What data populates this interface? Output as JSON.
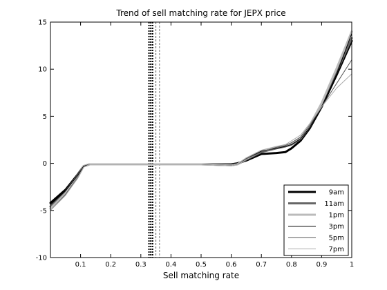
{
  "chart_data": {
    "type": "line",
    "title": "Trend of sell matching rate for JEPX price",
    "xlabel": "Sell matching rate",
    "ylabel": "",
    "xlim": [
      0,
      1
    ],
    "ylim": [
      -10,
      15
    ],
    "x_ticks": [
      0.1,
      0.2,
      0.3,
      0.4,
      0.5,
      0.6,
      0.7,
      0.8,
      0.9,
      1
    ],
    "x_tick_labels": [
      "0.1",
      "0.2",
      "0.3",
      "0.4",
      "0.5",
      "0.6",
      "0.7",
      "0.8",
      "0.9",
      "1"
    ],
    "y_ticks": [
      -10,
      -5,
      0,
      5,
      10,
      15
    ],
    "y_tick_labels": [
      "-10",
      "-5",
      "0",
      "5",
      "10",
      "15"
    ],
    "grid": false,
    "legend_placement": "bottom-right",
    "vertical_lines": [
      {
        "x": 0.327,
        "color": "#000000",
        "width": 2,
        "dash": "2,2"
      },
      {
        "x": 0.333,
        "color": "#000000",
        "width": 2,
        "dash": "2,2"
      },
      {
        "x": 0.339,
        "color": "#000000",
        "width": 2,
        "dash": "2,2"
      },
      {
        "x": 0.35,
        "color": "#555555",
        "width": 1,
        "dash": "3,2"
      },
      {
        "x": 0.362,
        "color": "#777777",
        "width": 1,
        "dash": "3,2"
      }
    ],
    "series": [
      {
        "name": "9am",
        "color": "#000000",
        "width": 3,
        "x": [
          0.0,
          0.05,
          0.09,
          0.11,
          0.13,
          0.3,
          0.5,
          0.6,
          0.62,
          0.65,
          0.7,
          0.75,
          0.78,
          0.8,
          0.83,
          0.86,
          0.9,
          0.95,
          1.0
        ],
        "y": [
          -4.2,
          -2.8,
          -1.2,
          -0.3,
          -0.1,
          -0.1,
          -0.1,
          -0.1,
          0.0,
          0.3,
          1.0,
          1.1,
          1.2,
          1.6,
          2.4,
          3.7,
          6.0,
          9.4,
          13.0
        ]
      },
      {
        "name": "11am",
        "color": "#666666",
        "width": 3,
        "x": [
          0.0,
          0.05,
          0.09,
          0.11,
          0.13,
          0.3,
          0.5,
          0.6,
          0.62,
          0.65,
          0.7,
          0.75,
          0.78,
          0.8,
          0.83,
          0.86,
          0.9,
          0.95,
          1.0
        ],
        "y": [
          -4.6,
          -3.0,
          -1.3,
          -0.3,
          -0.1,
          -0.1,
          -0.1,
          -0.2,
          -0.1,
          0.4,
          1.2,
          1.6,
          1.8,
          2.0,
          2.6,
          3.9,
          6.2,
          9.7,
          13.3
        ]
      },
      {
        "name": "1pm",
        "color": "#bbbbbb",
        "width": 3,
        "x": [
          0.0,
          0.05,
          0.09,
          0.11,
          0.13,
          0.3,
          0.5,
          0.6,
          0.62,
          0.65,
          0.7,
          0.75,
          0.78,
          0.8,
          0.83,
          0.86,
          0.9,
          0.95,
          1.0
        ],
        "y": [
          -4.8,
          -3.2,
          -1.5,
          -0.3,
          -0.1,
          -0.1,
          -0.1,
          -0.2,
          -0.1,
          0.5,
          1.3,
          1.7,
          1.9,
          2.1,
          2.7,
          4.0,
          6.4,
          10.1,
          14.0
        ]
      },
      {
        "name": "3pm",
        "color": "#000000",
        "width": 1,
        "x": [
          0.0,
          0.05,
          0.09,
          0.11,
          0.13,
          0.3,
          0.5,
          0.6,
          0.62,
          0.65,
          0.7,
          0.75,
          0.78,
          0.8,
          0.83,
          0.86,
          0.9,
          0.95,
          1.0
        ],
        "y": [
          -4.4,
          -2.9,
          -1.3,
          -0.3,
          -0.1,
          -0.1,
          -0.1,
          -0.2,
          -0.1,
          0.5,
          1.3,
          1.6,
          1.8,
          2.0,
          2.6,
          3.8,
          6.0,
          9.5,
          13.8
        ]
      },
      {
        "name": "5pm",
        "color": "#555555",
        "width": 1,
        "x": [
          0.0,
          0.05,
          0.09,
          0.11,
          0.13,
          0.3,
          0.5,
          0.6,
          0.62,
          0.65,
          0.7,
          0.75,
          0.78,
          0.8,
          0.83,
          0.86,
          0.9,
          0.95,
          1.0
        ],
        "y": [
          -5.0,
          -3.3,
          -1.5,
          -0.4,
          -0.1,
          -0.1,
          -0.1,
          -0.2,
          -0.1,
          0.5,
          1.2,
          1.7,
          1.9,
          2.2,
          2.8,
          4.0,
          6.0,
          8.5,
          11.0
        ]
      },
      {
        "name": "7pm",
        "color": "#aaaaaa",
        "width": 1,
        "x": [
          0.0,
          0.05,
          0.09,
          0.11,
          0.13,
          0.3,
          0.5,
          0.6,
          0.62,
          0.65,
          0.7,
          0.75,
          0.78,
          0.8,
          0.83,
          0.86,
          0.9,
          0.95,
          1.0
        ],
        "y": [
          -5.0,
          -3.4,
          -1.6,
          -0.4,
          -0.1,
          -0.1,
          -0.1,
          -0.2,
          -0.1,
          0.6,
          1.4,
          1.8,
          2.0,
          2.4,
          3.0,
          4.2,
          6.0,
          8.0,
          9.5
        ]
      }
    ]
  }
}
